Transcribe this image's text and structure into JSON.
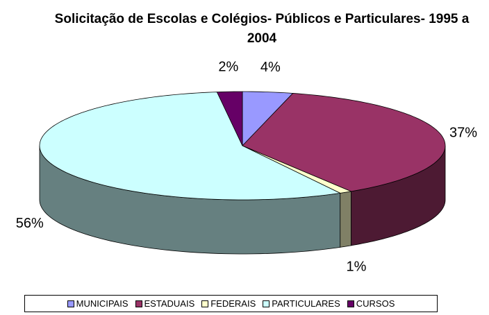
{
  "chart_data": {
    "type": "pie3d",
    "title": "Solicitação de Escolas e Colégios- Públicos e Particulares- 1995 a 2004",
    "categories": [
      "MUNICIPAIS",
      "ESTADUAIS",
      "FEDERAIS",
      "PARTICULARES",
      "CURSOS"
    ],
    "values": [
      4,
      37,
      1,
      56,
      2
    ],
    "value_labels": [
      "4%",
      "37%",
      "1%",
      "56%",
      "2%"
    ],
    "colors": [
      "#9999ff",
      "#993366",
      "#ffffcc",
      "#ccffff",
      "#660066"
    ],
    "legend": "bottom"
  }
}
